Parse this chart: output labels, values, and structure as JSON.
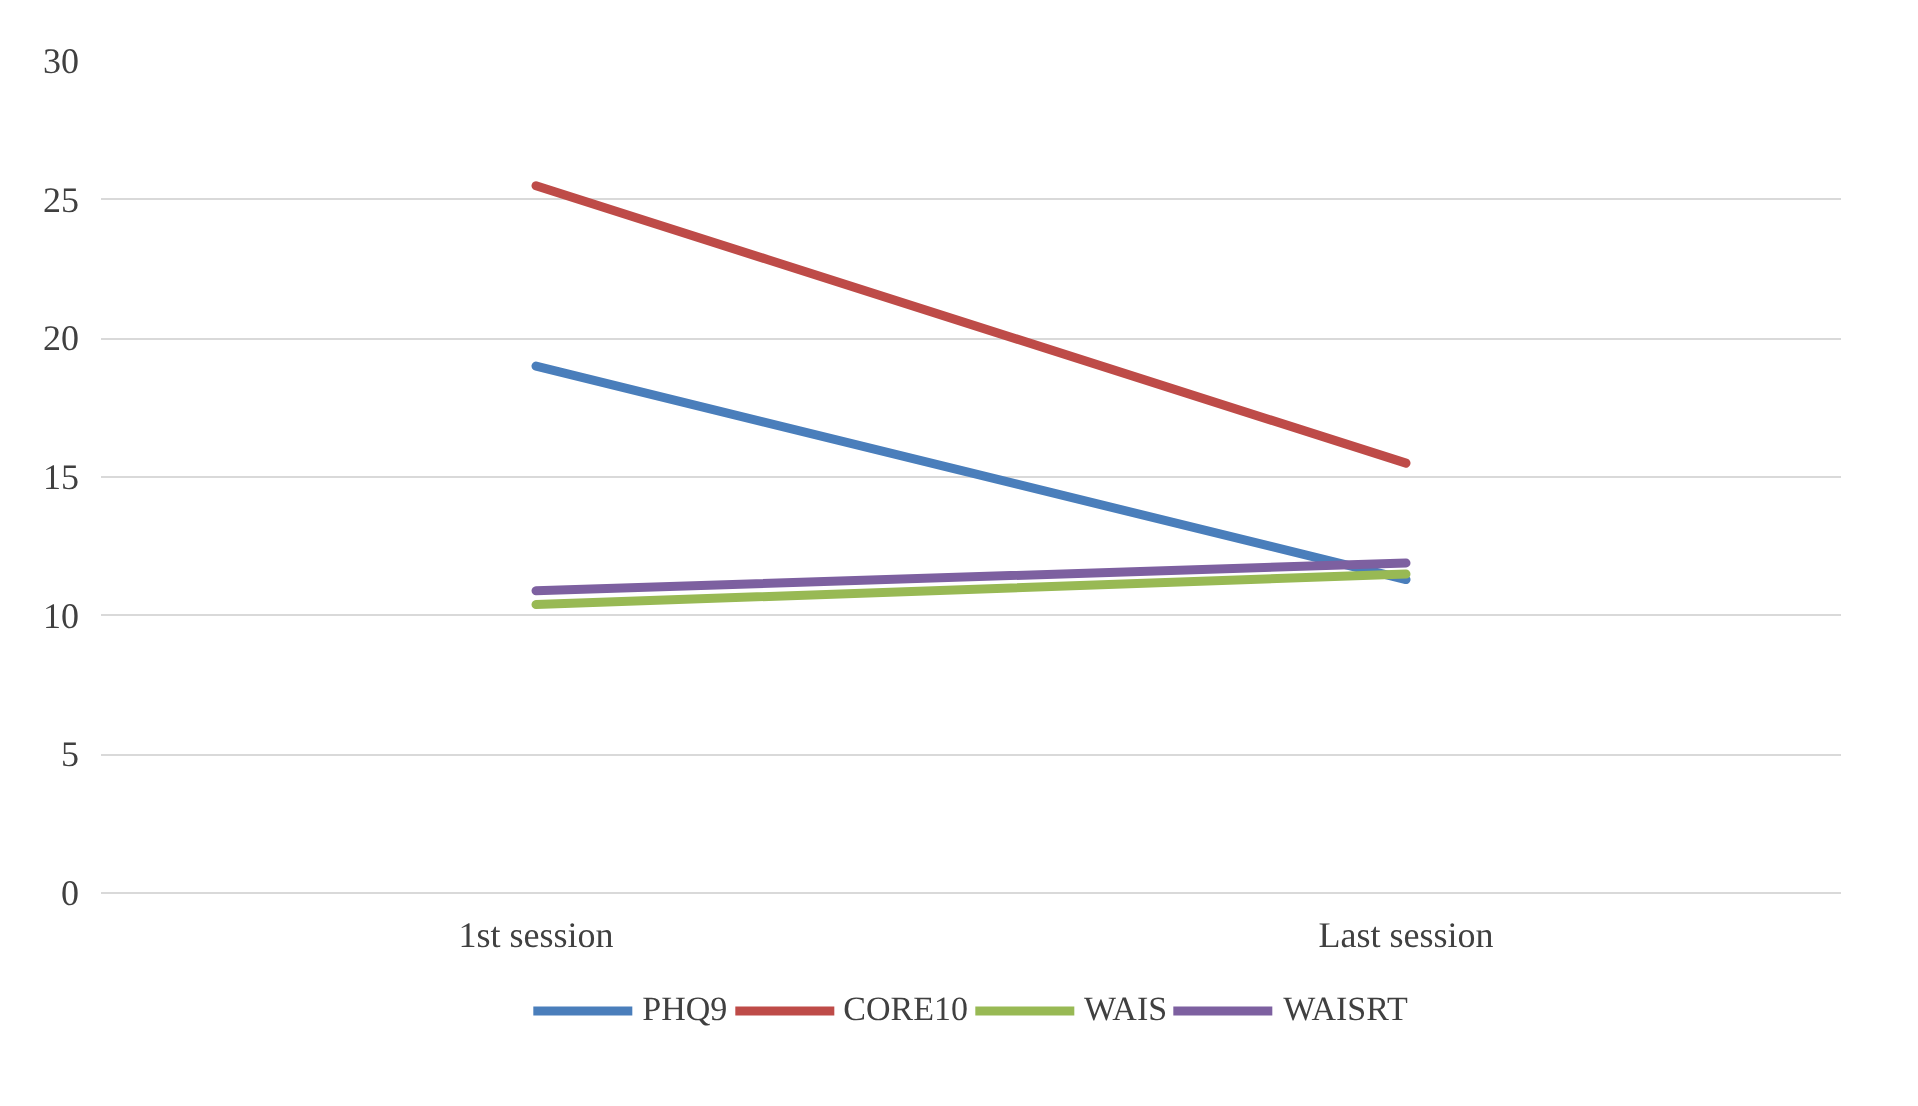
{
  "chart_data": {
    "type": "line",
    "categories": [
      "1st session",
      "Last session"
    ],
    "series": [
      {
        "name": "PHQ9",
        "color": "#4a7ebb",
        "values": [
          19.0,
          11.3
        ]
      },
      {
        "name": "CORE10",
        "color": "#be4b48",
        "values": [
          25.5,
          15.5
        ]
      },
      {
        "name": "WAIS",
        "color": "#98b954",
        "values": [
          10.4,
          11.5
        ]
      },
      {
        "name": "WAISRT",
        "color": "#7d60a0",
        "values": [
          10.9,
          11.9
        ]
      }
    ],
    "ylim": [
      0,
      30
    ],
    "yticks": [
      0,
      5,
      10,
      15,
      20,
      25,
      30
    ],
    "grid": "y",
    "legend": "bottom",
    "marker": "none",
    "line_style": "solid"
  }
}
